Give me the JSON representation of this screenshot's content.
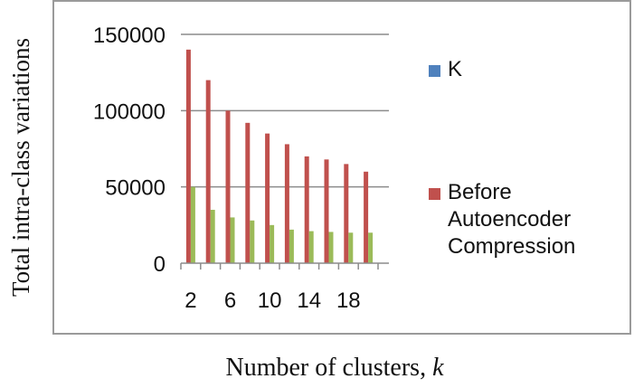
{
  "chart_data": {
    "type": "bar",
    "ylabel": "Total intra-class variations",
    "xlabel": "Number of clusters,",
    "xlabel_var": "k",
    "yticks": [
      0,
      50000,
      100000,
      150000
    ],
    "ytick_labels": [
      "0",
      "50000",
      "100000",
      "150000"
    ],
    "ylim": [
      0,
      150000
    ],
    "categories": [
      2,
      4,
      6,
      8,
      10,
      12,
      14,
      16,
      18,
      20
    ],
    "xtick_labels": [
      "2",
      "6",
      "10",
      "14",
      "18"
    ],
    "xtick_categories": [
      2,
      6,
      10,
      14,
      18
    ],
    "grid": true,
    "legend_position": "right",
    "series": [
      {
        "name": "Before\nAutoencoder\nCompression",
        "color": "#c0504d",
        "values": [
          140000,
          120000,
          100000,
          92000,
          85000,
          78000,
          70000,
          68000,
          65000,
          60000
        ]
      },
      {
        "color": "#9bbb59",
        "values": [
          50000,
          35000,
          30000,
          28000,
          25000,
          22000,
          21000,
          20500,
          20000,
          20000
        ]
      }
    ],
    "legend": [
      {
        "label": "K",
        "color": "#4f81bd"
      },
      {
        "label": "Before\nAutoencoder\nCompression",
        "color": "#c0504d"
      }
    ]
  }
}
